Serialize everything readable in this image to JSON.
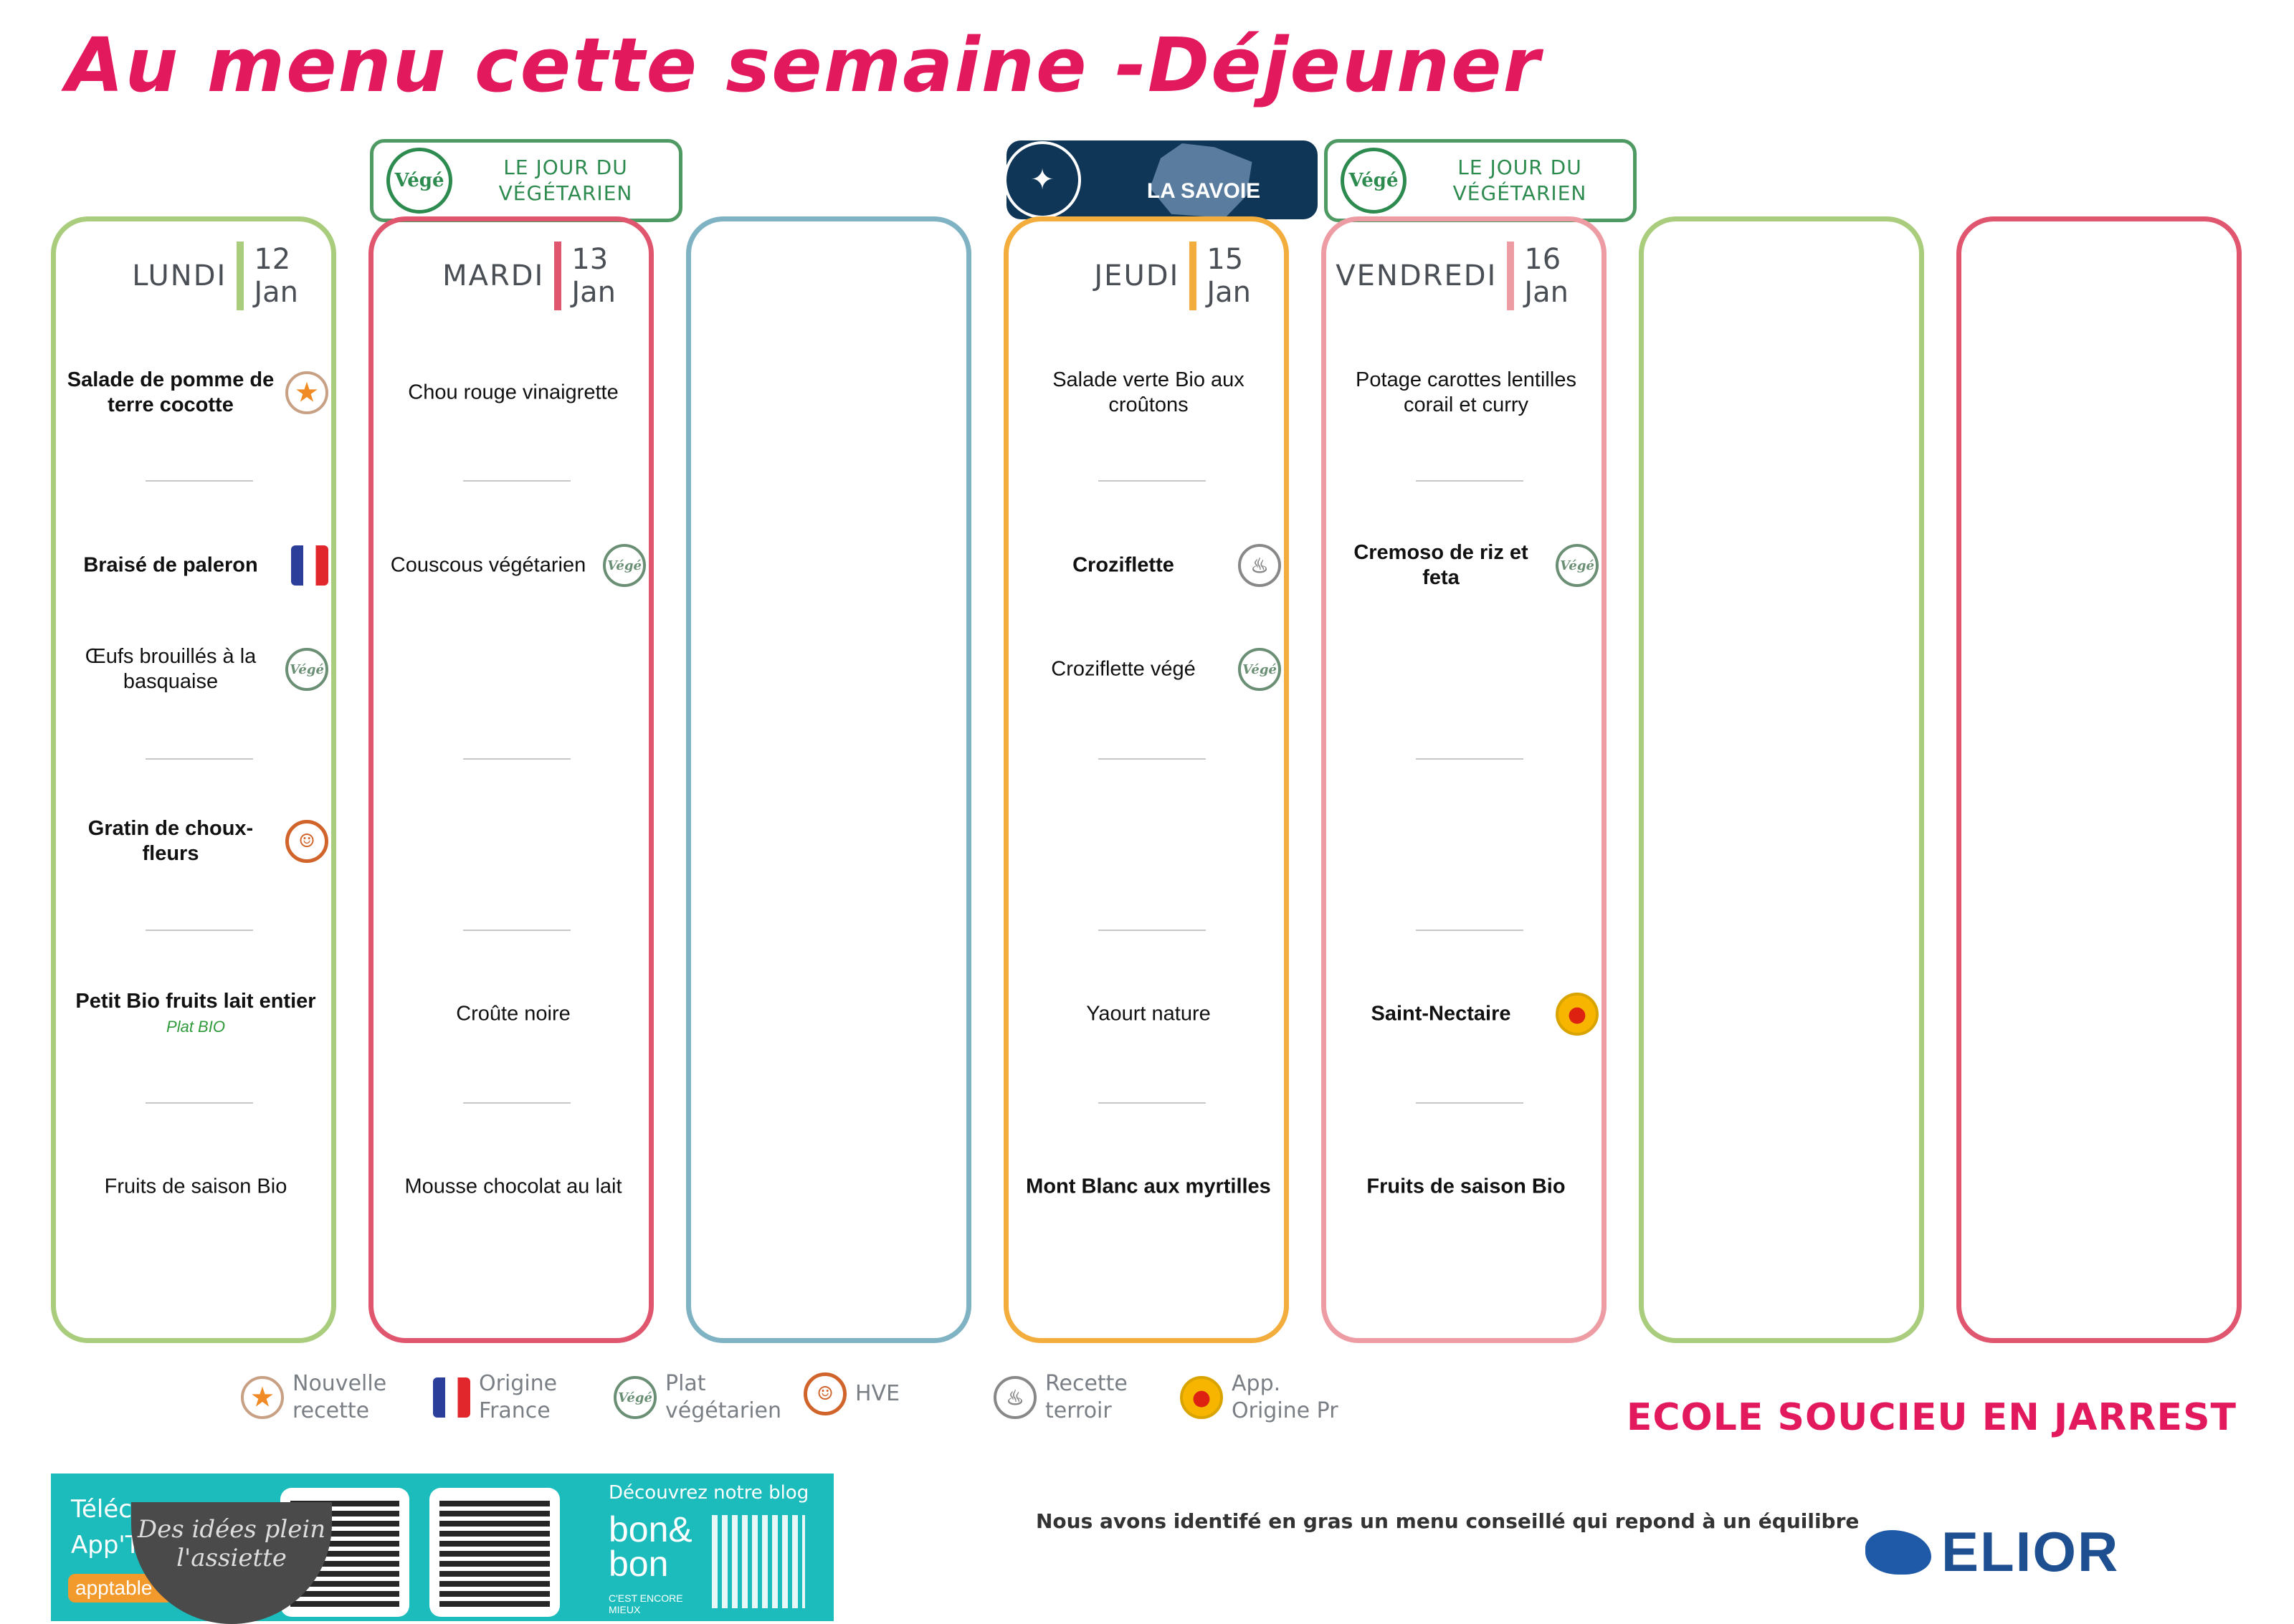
{
  "title": "Au menu cette semaine -Déjeuner",
  "badges": {
    "vege_label_line1": "LE JOUR DU",
    "vege_label_line2": "VÉGÉTARIEN",
    "vege_circle": "Végé",
    "savoie_label": "LA SAVOIE"
  },
  "colors": {
    "title": "#e2195c",
    "lundi": "#a9cd7c",
    "mardi": "#e0566e",
    "blank1": "#7fb3c4",
    "jeudi": "#f2ad3c",
    "vendredi": "#ee9ca4",
    "blank2": "#a9cd7c",
    "blank3": "#e0566e"
  },
  "columns": [
    {
      "key": "lundi",
      "day": "LUNDI",
      "num": "12",
      "month": "Jan",
      "color": "#a9cd7c",
      "items": [
        {
          "slot": 0,
          "text": "Salade de pomme de terre cocotte",
          "bold": true,
          "icon": "star"
        },
        {
          "slot": 1,
          "text": "Braisé de paleron",
          "bold": true,
          "icon": "flag"
        },
        {
          "slot": 2,
          "text": "Œufs brouillés à la basquaise",
          "bold": false,
          "icon": "vege"
        },
        {
          "slot": 3,
          "text": "Gratin de choux-fleurs",
          "bold": true,
          "icon": "hve"
        },
        {
          "slot": 4,
          "text": "Petit Bio fruits lait entier",
          "bold": true,
          "icon": "",
          "note": "Plat BIO"
        },
        {
          "slot": 5,
          "text": "Fruits de saison Bio",
          "bold": false,
          "icon": ""
        }
      ]
    },
    {
      "key": "mardi",
      "day": "MARDI",
      "num": "13",
      "month": "Jan",
      "color": "#e0566e",
      "items": [
        {
          "slot": 0,
          "text": "Chou rouge vinaigrette",
          "bold": false,
          "icon": ""
        },
        {
          "slot": 1,
          "text": "Couscous végétarien",
          "bold": false,
          "icon": "vege"
        },
        {
          "slot": 4,
          "text": "Croûte noire",
          "bold": false,
          "icon": ""
        },
        {
          "slot": 5,
          "text": "Mousse chocolat au lait",
          "bold": false,
          "icon": ""
        }
      ]
    },
    {
      "key": "blank1",
      "day": "",
      "num": "",
      "month": "",
      "color": "#7fb3c4",
      "items": []
    },
    {
      "key": "jeudi",
      "day": "JEUDI",
      "num": "15",
      "month": "Jan",
      "color": "#f2ad3c",
      "items": [
        {
          "slot": 0,
          "text": "Salade verte Bio aux croûtons",
          "bold": false,
          "icon": ""
        },
        {
          "slot": 1,
          "text": "Croziflette",
          "bold": true,
          "icon": "terroir"
        },
        {
          "slot": 2,
          "text": "Croziflette végé",
          "bold": false,
          "icon": "vege"
        },
        {
          "slot": 4,
          "text": "Yaourt nature",
          "bold": false,
          "icon": ""
        },
        {
          "slot": 5,
          "text": "Mont Blanc aux myrtilles",
          "bold": true,
          "icon": ""
        }
      ]
    },
    {
      "key": "vendredi",
      "day": "VENDREDI",
      "num": "16",
      "month": "Jan",
      "color": "#ee9ca4",
      "items": [
        {
          "slot": 0,
          "text": "Potage carottes lentilles corail et curry",
          "bold": false,
          "icon": ""
        },
        {
          "slot": 1,
          "text": "Cremoso de riz et feta",
          "bold": true,
          "icon": "vege"
        },
        {
          "slot": 4,
          "text": "Saint-Nectaire",
          "bold": true,
          "icon": "aop"
        },
        {
          "slot": 5,
          "text": "Fruits de saison Bio",
          "bold": true,
          "icon": ""
        }
      ]
    },
    {
      "key": "blank2",
      "day": "",
      "num": "",
      "month": "",
      "color": "#a9cd7c",
      "items": []
    },
    {
      "key": "blank3",
      "day": "",
      "num": "",
      "month": "",
      "color": "#e0566e",
      "items": []
    }
  ],
  "legend": [
    {
      "icon": "star",
      "line1": "Nouvelle",
      "line2": "recette"
    },
    {
      "icon": "flag",
      "line1": "Origine",
      "line2": "France"
    },
    {
      "icon": "vege",
      "line1": "Plat",
      "line2": "végétarien"
    },
    {
      "icon": "hve",
      "line1": "HVE",
      "line2": ""
    },
    {
      "icon": "terroir",
      "line1": "Recette",
      "line2": "terroir"
    },
    {
      "icon": "aop",
      "line1": "App.",
      "line2": "Origine Pr"
    }
  ],
  "banner": {
    "download_partial": "Téléc",
    "app_partial": "App'T",
    "apptable_partial": "apptable",
    "bowl_text": "Des idées plein l'assiette",
    "blog_label": "Découvrez notre blog",
    "bon_logo": "bon&bon",
    "bon_tagline": "C'EST ENCORE MIEUX"
  },
  "footnote": "Nous avons identifé en gras un menu conseillé qui repond à un équilibre",
  "school": "ECOLE SOUCIEU EN JARREST",
  "brand": "ELIOR"
}
